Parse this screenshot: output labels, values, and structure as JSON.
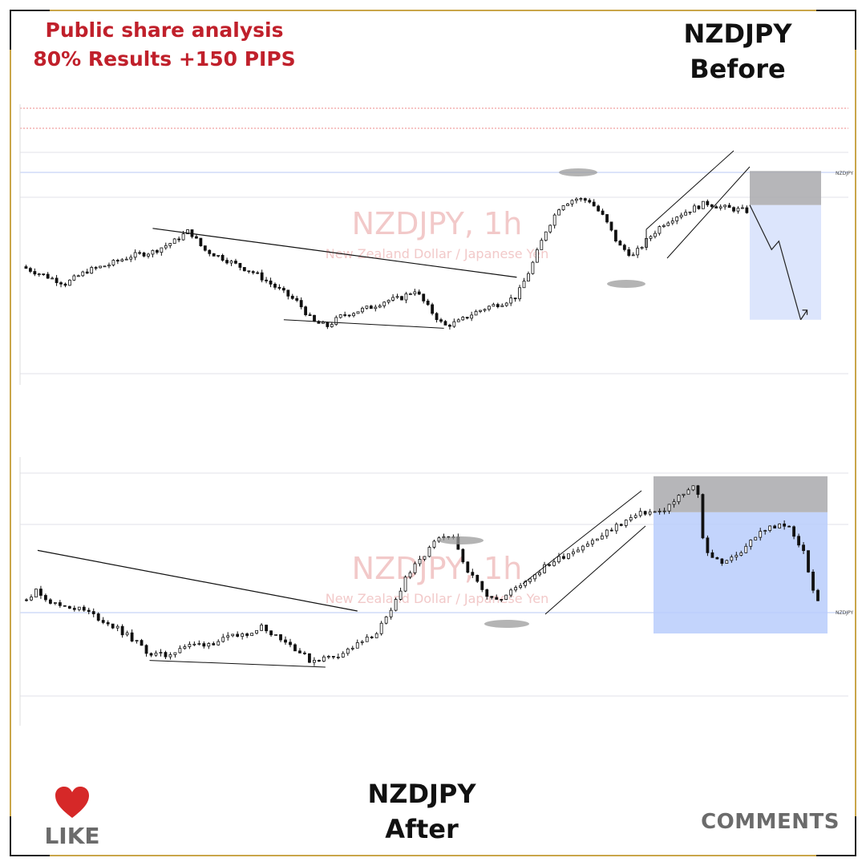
{
  "header": {
    "line1": "Public share analysis",
    "line2": "80% Results +150 PIPS",
    "headline_color": "#c0202b"
  },
  "before": {
    "pair": "NZDJPY",
    "label": "Before"
  },
  "after": {
    "pair": "NZDJPY",
    "label": "After"
  },
  "footer": {
    "like_label": "LIKE",
    "like_icon": "heart-icon",
    "comments_label": "COMMENTS"
  },
  "colors": {
    "heart": "#d62828",
    "frame_gold": "#c9a64a",
    "candle": "#111111",
    "stop_zone": "#a9a9ad",
    "target_zone_before": "#d6e1fb",
    "target_zone_after": "#b9cdfb",
    "watermark": "#f2c9c9"
  },
  "chart_data": [
    {
      "type": "candlestick",
      "title": "NZDJPY, 1h",
      "subtitle": "New Zealand Dollar / Japanese Yen",
      "price_label": "NZDJPY",
      "ylim": [
        0,
        100
      ],
      "close_path": [
        [
          0,
          50
        ],
        [
          3,
          46
        ],
        [
          6,
          42
        ],
        [
          9,
          48
        ],
        [
          12,
          51
        ],
        [
          15,
          55
        ],
        [
          18,
          57
        ],
        [
          21,
          62
        ],
        [
          23,
          67
        ],
        [
          25,
          58
        ],
        [
          27,
          55
        ],
        [
          30,
          50
        ],
        [
          32,
          47
        ],
        [
          35,
          40
        ],
        [
          38,
          33
        ],
        [
          40,
          24
        ],
        [
          42,
          22
        ],
        [
          44,
          27
        ],
        [
          46,
          29
        ],
        [
          48,
          31
        ],
        [
          50,
          34
        ],
        [
          52,
          35
        ],
        [
          54,
          39
        ],
        [
          56,
          30
        ],
        [
          58,
          22
        ],
        [
          60,
          24
        ],
        [
          62,
          28
        ],
        [
          64,
          31
        ],
        [
          66,
          33
        ],
        [
          68,
          36
        ],
        [
          70,
          50
        ],
        [
          72,
          67
        ],
        [
          74,
          79
        ],
        [
          76,
          82
        ],
        [
          78,
          81
        ],
        [
          80,
          73
        ],
        [
          82,
          60
        ],
        [
          84,
          55
        ],
        [
          86,
          63
        ],
        [
          88,
          70
        ],
        [
          90,
          74
        ],
        [
          92,
          77
        ],
        [
          94,
          80
        ],
        [
          96,
          78
        ],
        [
          98,
          77
        ],
        [
          100,
          76
        ]
      ],
      "annotations": {
        "descending_trendline": [
          [
            18,
            68
          ],
          [
            68,
            45
          ]
        ],
        "support_line": [
          [
            36,
            25
          ],
          [
            58,
            21
          ]
        ],
        "rising_wedge": true,
        "projected_move": [
          [
            100,
            79
          ],
          [
            103,
            58
          ],
          [
            104,
            62
          ],
          [
            107,
            25
          ]
        ],
        "stop_zone": [
          79,
          95
        ],
        "target_zone": [
          25,
          79
        ]
      }
    },
    {
      "type": "candlestick",
      "title": "NZDJPY, 1h",
      "subtitle": "New Zealand Dollar / Japanese Yen",
      "price_label": "NZDJPY",
      "ylim": [
        0,
        100
      ],
      "close_path": [
        [
          0,
          40
        ],
        [
          2,
          44
        ],
        [
          4,
          38
        ],
        [
          6,
          37
        ],
        [
          8,
          35
        ],
        [
          10,
          31
        ],
        [
          12,
          27
        ],
        [
          14,
          22
        ],
        [
          16,
          16
        ],
        [
          18,
          15
        ],
        [
          20,
          19
        ],
        [
          22,
          20
        ],
        [
          24,
          21
        ],
        [
          26,
          23
        ],
        [
          28,
          25
        ],
        [
          30,
          28
        ],
        [
          32,
          24
        ],
        [
          34,
          19
        ],
        [
          36,
          13
        ],
        [
          38,
          14
        ],
        [
          40,
          16
        ],
        [
          42,
          20
        ],
        [
          44,
          24
        ],
        [
          46,
          33
        ],
        [
          48,
          50
        ],
        [
          50,
          58
        ],
        [
          52,
          67
        ],
        [
          54,
          67
        ],
        [
          56,
          52
        ],
        [
          58,
          43
        ],
        [
          60,
          40
        ],
        [
          62,
          46
        ],
        [
          64,
          51
        ],
        [
          66,
          56
        ],
        [
          68,
          60
        ],
        [
          70,
          64
        ],
        [
          72,
          67
        ],
        [
          74,
          72
        ],
        [
          76,
          76
        ],
        [
          78,
          79
        ],
        [
          80,
          79
        ],
        [
          82,
          85
        ],
        [
          84,
          90
        ],
        [
          84.5,
          92
        ],
        [
          85,
          69
        ],
        [
          86,
          60
        ],
        [
          88,
          56
        ],
        [
          90,
          62
        ],
        [
          92,
          69
        ],
        [
          94,
          73
        ],
        [
          96,
          72
        ],
        [
          98,
          60
        ],
        [
          99,
          43
        ],
        [
          100,
          37
        ]
      ],
      "annotations": {
        "descending_trendline": [
          [
            2,
            62
          ],
          [
            42,
            35
          ]
        ],
        "support_line": [
          [
            16,
            13
          ],
          [
            38,
            10
          ]
        ],
        "rising_channel": true,
        "stop_zone": [
          79,
          95
        ],
        "target_zone": [
          25,
          79
        ]
      }
    }
  ]
}
